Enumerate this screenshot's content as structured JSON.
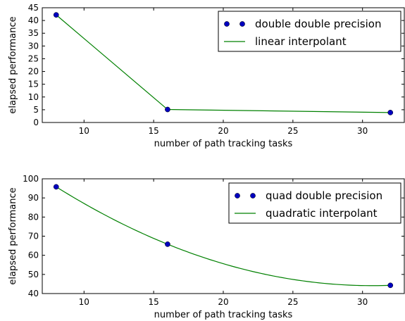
{
  "chart_data": [
    {
      "type": "line",
      "xlabel": "number of path tracking tasks",
      "ylabel": "elapsed performance",
      "xlim": [
        7,
        33
      ],
      "ylim": [
        0,
        45
      ],
      "xticks": [
        10,
        15,
        20,
        25,
        30
      ],
      "yticks": [
        0,
        5,
        10,
        15,
        20,
        25,
        30,
        35,
        40,
        45
      ],
      "legend_position": "top-right",
      "series": [
        {
          "name": "double double precision",
          "style": "markers",
          "color": "#0000bf",
          "x": [
            8,
            16,
            32
          ],
          "y": [
            42.2,
            5.1,
            3.9
          ]
        },
        {
          "name": "linear interpolant",
          "style": "line",
          "color": "#008000",
          "interpolation": "linear",
          "x": [
            8,
            16,
            32
          ],
          "y": [
            42.2,
            5.1,
            3.9
          ]
        }
      ]
    },
    {
      "type": "line",
      "xlabel": "number of path tracking tasks",
      "ylabel": "elapsed performance",
      "xlim": [
        7,
        33
      ],
      "ylim": [
        40,
        100
      ],
      "xticks": [
        10,
        15,
        20,
        25,
        30
      ],
      "yticks": [
        40,
        50,
        60,
        70,
        80,
        90,
        100
      ],
      "legend_position": "top-right",
      "series": [
        {
          "name": "quad double precision",
          "style": "markers",
          "color": "#0000bf",
          "x": [
            8,
            16,
            32
          ],
          "y": [
            95.8,
            65.8,
            44.3
          ]
        },
        {
          "name": "quadratic interpolant",
          "style": "line",
          "color": "#008000",
          "interpolation": "quadratic",
          "x": [
            8,
            16,
            32
          ],
          "y": [
            95.8,
            65.8,
            44.3
          ]
        }
      ]
    }
  ]
}
